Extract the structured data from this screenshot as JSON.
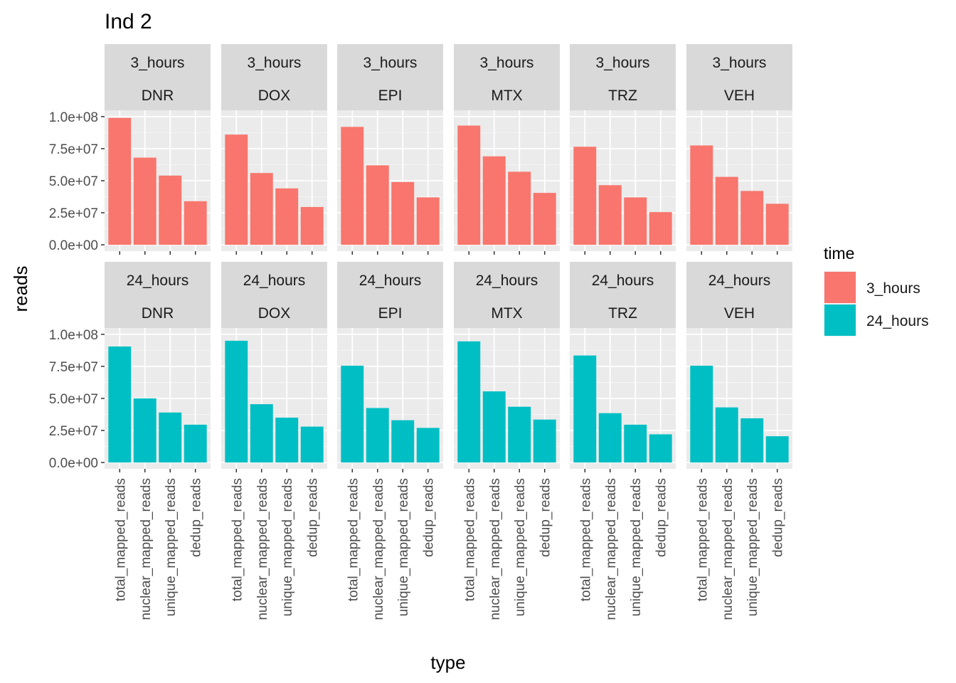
{
  "chart_data": {
    "type": "bar",
    "title": "Ind 2",
    "xlabel": "type",
    "ylabel": "reads",
    "categories": [
      "total_mapped_reads",
      "nuclear_mapped_reads",
      "unique_mapped_reads",
      "dedup_reads"
    ],
    "treatments": [
      "DNR",
      "DOX",
      "EPI",
      "MTX",
      "TRZ",
      "VEH"
    ],
    "ylim": [
      0,
      100000000
    ],
    "yticks": [
      0,
      25000000,
      50000000,
      75000000,
      100000000
    ],
    "ytick_labels": [
      "0.0e+00",
      "2.5e+07",
      "5.0e+07",
      "7.5e+07",
      "1.0e+08"
    ],
    "grid": true,
    "legend": {
      "title": "time",
      "position": "right",
      "entries": [
        {
          "label": "3_hours",
          "color": "#F8766D"
        },
        {
          "label": "24_hours",
          "color": "#00BFC4"
        }
      ]
    },
    "facets": [
      {
        "time": "3_hours",
        "color": "#F8766D",
        "panels": [
          {
            "treatment": "DNR",
            "values": [
              99000000,
              68000000,
              54000000,
              34000000
            ]
          },
          {
            "treatment": "DOX",
            "values": [
              86000000,
              56000000,
              44000000,
              29500000
            ]
          },
          {
            "treatment": "EPI",
            "values": [
              92000000,
              62000000,
              49000000,
              37000000
            ]
          },
          {
            "treatment": "MTX",
            "values": [
              93000000,
              69000000,
              57000000,
              40500000
            ]
          },
          {
            "treatment": "TRZ",
            "values": [
              76500000,
              46500000,
              37000000,
              25500000
            ]
          },
          {
            "treatment": "VEH",
            "values": [
              77500000,
              53000000,
              42000000,
              32000000
            ]
          }
        ]
      },
      {
        "time": "24_hours",
        "color": "#00BFC4",
        "panels": [
          {
            "treatment": "DNR",
            "values": [
              90500000,
              50000000,
              39000000,
              29500000
            ]
          },
          {
            "treatment": "DOX",
            "values": [
              95000000,
              45500000,
              35000000,
              28000000
            ]
          },
          {
            "treatment": "EPI",
            "values": [
              75500000,
              42500000,
              33000000,
              27000000
            ]
          },
          {
            "treatment": "MTX",
            "values": [
              94500000,
              55500000,
              43500000,
              33500000
            ]
          },
          {
            "treatment": "TRZ",
            "values": [
              83500000,
              38500000,
              29500000,
              22000000
            ]
          },
          {
            "treatment": "VEH",
            "values": [
              75500000,
              43000000,
              34500000,
              20500000
            ]
          }
        ]
      }
    ]
  }
}
